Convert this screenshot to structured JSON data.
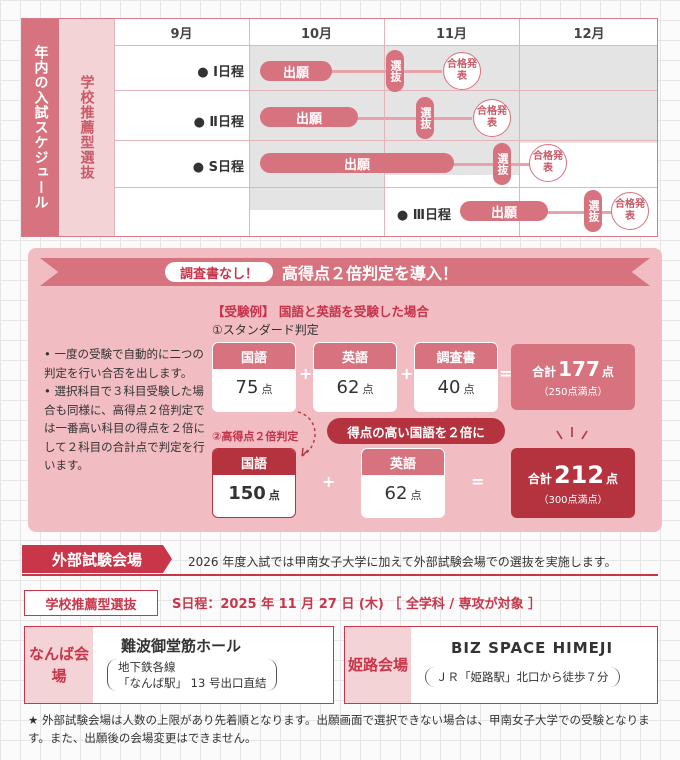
{
  "schedule": {
    "title": "年内の入試スケジュール",
    "subtitle": "学校推薦型選抜",
    "months": [
      "9月",
      "10月",
      "11月",
      "12月"
    ],
    "rows": [
      {
        "label": "● Ⅰ日程",
        "apply": "出願",
        "select": "選抜",
        "result": "合格発表"
      },
      {
        "label": "● Ⅱ日程",
        "apply": "出願",
        "select": "選抜",
        "result": "合格発表"
      },
      {
        "label": "● S日程",
        "apply": "出願",
        "select": "選抜",
        "result": "合格発表"
      },
      {
        "label": "● Ⅲ日程",
        "apply": "出願",
        "select": "選抜",
        "result": "合格発表"
      }
    ]
  },
  "banner": {
    "pill": "調査書なし！",
    "text": "高得点２倍判定を導入！"
  },
  "notes": [
    "• 一度の受験で自動的に二つの判定を行い合否を出します。",
    "• 選択科目で３科目受験した場合も同様に、高得点２倍判定では一番高い科目の得点を２倍にして２科目の合計点で判定を行います。"
  ],
  "example": {
    "title": "【受験例】 国語と英語を受験した場合",
    "standard_label": "①スタンダード判定",
    "standard": [
      {
        "subject": "国語",
        "score": "75",
        "unit": "点"
      },
      {
        "subject": "英語",
        "score": "62",
        "unit": "点"
      },
      {
        "subject": "調査書",
        "score": "40",
        "unit": "点"
      }
    ],
    "plus": "+",
    "equals": "=",
    "standard_total": {
      "prefix": "合計",
      "value": "177",
      "unit": "点",
      "note": "（250点満点）"
    },
    "double_label": "②高得点２倍判定",
    "double_note": "得点の高い国語を２倍に",
    "double": [
      {
        "subject": "国語",
        "score": "150",
        "unit": "点"
      },
      {
        "subject": "英語",
        "score": "62",
        "unit": "点"
      }
    ],
    "double_total": {
      "prefix": "合計",
      "value": "212",
      "unit": "点",
      "note": "（300点満点）"
    }
  },
  "external": {
    "badge": "外部試験会場",
    "description": "2026 年度入試では甲南女子大学に加えて外部試験会場での選抜を実施します。",
    "type": "学校推薦型選抜",
    "schedule": "S日程：2025 年 11 月 27 日 (木) ［ 全学科 / 専攻が対象 ］",
    "venues": [
      {
        "tag": "なんば会場",
        "name": "難波御堂筋ホール",
        "detail1": "地下鉄各線",
        "detail2": "「なんば駅」 13 号出口直結"
      },
      {
        "tag": "姫路会場",
        "name": "BIZ SPACE HIMEJI",
        "detail1": "ＪＲ「姫路駅」北口から徒歩７分",
        "detail2": ""
      }
    ]
  },
  "footer": "★ 外部試験会場は人数の上限があり先着順となります。出願画面で選択できない場合は、甲南女子大学での受験となります。また、出願後の会場変更はできません。",
  "colors": {
    "accent": "#d6737f",
    "dark_accent": "#b5323f",
    "panel": "#f1bcc2",
    "red_text": "#c9364a"
  }
}
